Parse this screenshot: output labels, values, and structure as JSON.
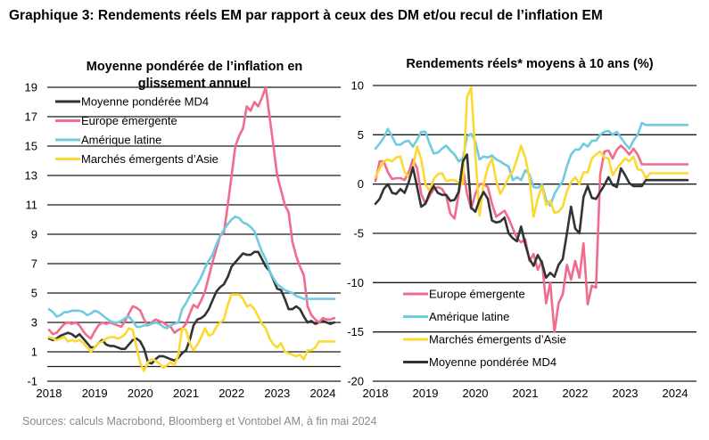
{
  "page": {
    "title": "Graphique 3: Rendements réels EM par rapport à ceux des DM et/ou recul de l’inflation EM",
    "source": "Sources: calculs Macrobond, Bloomberg et Vontobel AM, à fin mai 2024"
  },
  "colors": {
    "md4": "#333333",
    "europe": "#f06b8c",
    "latam": "#6fcbe0",
    "asia": "#fcd932",
    "grid": "#222222"
  },
  "chart_data": [
    {
      "type": "line",
      "title": "Moyenne pondérée de l’inflation en glissement annuel",
      "title_lines": [
        "Moyenne pondérée de l’inflation en",
        "glissement annuel"
      ],
      "xlabel": "",
      "ylabel": "",
      "x_start": "2018-01",
      "x_frequency": "monthly",
      "x_range": [
        2018.0,
        2024.42
      ],
      "x_ticks": [
        "2018",
        "2019",
        "2020",
        "2021",
        "2022",
        "2023",
        "2024"
      ],
      "ylim": [
        -1,
        19
      ],
      "y_ticks": [
        "19",
        "17",
        "15",
        "13",
        "11",
        "9",
        "7",
        "5",
        "3",
        "1",
        "-1"
      ],
      "y_tick_values": [
        19,
        17,
        15,
        13,
        11,
        9,
        7,
        5,
        3,
        1,
        -1
      ],
      "gridlines": [
        19,
        17,
        15,
        13,
        11,
        9,
        7,
        5,
        3,
        1,
        0,
        -1
      ],
      "grid": true,
      "legend_position": "top-left",
      "legend": [
        "Moyenne pondérée MD4",
        "Europe émergente",
        "Amérique latine",
        "Marchés émergents d’Asie"
      ],
      "series": [
        {
          "name": "Moyenne pondérée MD4",
          "color_key": "md4",
          "values": [
            1.9,
            1.8,
            1.9,
            2.1,
            2.2,
            2.3,
            2.2,
            2.0,
            2.2,
            1.9,
            1.6,
            1.3,
            1.3,
            1.6,
            1.8,
            1.5,
            1.4,
            1.4,
            1.3,
            1.2,
            1.2,
            1.5,
            1.8,
            1.9,
            1.7,
            1.2,
            0.3,
            0.2,
            0.5,
            0.7,
            0.7,
            0.6,
            0.5,
            0.4,
            0.6,
            0.9,
            1.1,
            1.8,
            2.8,
            3.2,
            3.3,
            3.5,
            3.9,
            4.5,
            5.1,
            5.4,
            5.6,
            6.1,
            6.8,
            7.1,
            7.4,
            7.7,
            7.6,
            7.6,
            7.8,
            7.8,
            7.3,
            6.8,
            6.5,
            5.9,
            5.3,
            5.2,
            4.6,
            3.9,
            3.9,
            4.1,
            3.9,
            3.4,
            3.0,
            3.1,
            2.9,
            3.0,
            3.1,
            3.0,
            2.9,
            3.0
          ]
        },
        {
          "name": "Europe émergente",
          "color_key": "europe",
          "values": [
            2.5,
            2.2,
            2.3,
            2.6,
            2.9,
            3.0,
            2.9,
            3.0,
            2.8,
            2.4,
            2.1,
            1.9,
            2.4,
            2.8,
            3.0,
            2.9,
            3.0,
            2.9,
            2.8,
            2.7,
            3.1,
            3.6,
            4.1,
            4.0,
            3.8,
            3.2,
            2.8,
            3.0,
            3.2,
            3.1,
            3.0,
            2.8,
            2.7,
            2.3,
            2.5,
            2.6,
            2.9,
            3.6,
            4.2,
            4.0,
            4.5,
            5.1,
            6.1,
            7.1,
            8.0,
            8.9,
            9.1,
            11.0,
            13.0,
            15.0,
            15.7,
            16.2,
            17.7,
            17.4,
            18.0,
            17.7,
            18.3,
            19.0,
            17.0,
            15.0,
            13.0,
            12.0,
            11.0,
            10.5,
            8.5,
            7.5,
            6.8,
            6.2,
            4.1,
            3.5,
            3.2,
            3.0,
            3.3,
            3.2,
            3.2,
            3.3
          ]
        },
        {
          "name": "Amérique latine",
          "color_key": "latam",
          "values": [
            3.9,
            3.7,
            3.4,
            3.5,
            3.7,
            3.7,
            3.8,
            3.8,
            3.8,
            3.7,
            3.5,
            3.6,
            3.8,
            3.7,
            3.5,
            3.3,
            3.1,
            3.0,
            3.0,
            3.1,
            3.3,
            3.4,
            3.1,
            2.7,
            2.7,
            2.8,
            2.8,
            2.9,
            3.0,
            2.9,
            2.7,
            2.6,
            2.8,
            2.9,
            3.0,
            3.9,
            4.3,
            4.8,
            5.2,
            5.6,
            6.1,
            6.7,
            7.2,
            7.6,
            8.3,
            8.9,
            9.3,
            9.7,
            10.0,
            10.2,
            10.1,
            9.8,
            9.7,
            9.5,
            9.2,
            8.5,
            7.8,
            7.3,
            6.5,
            6.0,
            5.6,
            5.4,
            5.2,
            5.1,
            5.0,
            4.8,
            4.7,
            4.6,
            4.6,
            4.6,
            4.6,
            4.6,
            4.6,
            4.6,
            4.6,
            4.6
          ]
        },
        {
          "name": "Marchés émergents d’Asie",
          "color_key": "asia",
          "values": [
            2.0,
            1.9,
            1.8,
            1.9,
            2.0,
            1.7,
            1.8,
            1.7,
            1.8,
            1.6,
            1.3,
            1.0,
            1.3,
            1.6,
            1.7,
            1.9,
            2.0,
            2.0,
            1.9,
            2.0,
            2.2,
            2.6,
            2.5,
            1.3,
            0.2,
            -0.3,
            0.3,
            0.5,
            0.4,
            0.2,
            -0.1,
            0.1,
            0.3,
            0.1,
            0.8,
            2.6,
            2.5,
            1.6,
            1.1,
            1.5,
            2.0,
            2.6,
            2.1,
            2.2,
            2.7,
            3.0,
            3.2,
            4.2,
            4.9,
            4.9,
            4.9,
            4.6,
            4.1,
            4.2,
            3.9,
            3.4,
            2.9,
            2.6,
            1.9,
            1.5,
            1.3,
            1.6,
            1.0,
            0.9,
            0.8,
            0.7,
            0.8,
            0.5,
            1.1,
            1.1,
            1.3,
            1.7,
            1.7,
            1.7,
            1.7,
            1.7
          ]
        }
      ]
    },
    {
      "type": "line",
      "title": "Rendements réels* moyens à 10 ans (%)",
      "title_lines": [
        "Rendements réels* moyens à 10 ans (%)"
      ],
      "xlabel": "",
      "ylabel": "",
      "x_start": "2018-01",
      "x_frequency": "monthly",
      "x_range": [
        2018.0,
        2024.42
      ],
      "x_ticks": [
        "2018",
        "2019",
        "2020",
        "2021",
        "2022",
        "2023",
        "2024"
      ],
      "ylim": [
        -20,
        10
      ],
      "y_ticks": [
        "10",
        "5",
        "0",
        "-5",
        "-10",
        "-15",
        "-20"
      ],
      "y_tick_values": [
        10,
        5,
        0,
        -5,
        -10,
        -15,
        -20
      ],
      "gridlines": [
        10,
        5,
        0,
        -5,
        -10,
        -15,
        -20
      ],
      "grid": true,
      "legend_position": "bottom-left",
      "legend": [
        "Europe émergente",
        "Amérique latine",
        "Marchés émergents d’Asie",
        "Moyenne pondérée MD4"
      ],
      "series": [
        {
          "name": "Europe émergente",
          "color_key": "europe",
          "values": [
            0.3,
            2.3,
            2.3,
            1.2,
            0.5,
            0.6,
            0.6,
            0.4,
            1.2,
            2.5,
            1.6,
            -1.0,
            -2.0,
            -1.2,
            -0.5,
            -0.3,
            -0.5,
            -1.2,
            -3.0,
            -3.5,
            -1.0,
            1.7,
            -1.0,
            -2.5,
            -1.0,
            0.0,
            0.0,
            -0.3,
            -2.0,
            -3.3,
            -3.0,
            -2.7,
            -3.5,
            -4.5,
            -5.5,
            -5.9,
            -5.6,
            -7.8,
            -7.1,
            -8.7,
            -7.8,
            -12.1,
            -10.0,
            -15.0,
            -12.1,
            -11.2,
            -8.2,
            -9.7,
            -7.8,
            -9.5,
            -6.0,
            -12.2,
            -10.3,
            -10.5,
            1.0,
            3.3,
            3.4,
            2.6,
            3.5,
            3.9,
            3.5,
            3.0,
            3.6,
            3.0,
            2.0,
            2.0,
            2.0,
            2.0,
            2.0,
            2.0,
            2.0,
            2.0,
            2.0,
            2.0,
            2.0,
            2.0
          ]
        },
        {
          "name": "Amérique latine",
          "color_key": "latam",
          "values": [
            3.6,
            4.1,
            4.7,
            5.6,
            4.8,
            4.0,
            4.0,
            4.3,
            4.4,
            3.8,
            4.5,
            5.3,
            5.3,
            4.1,
            3.1,
            3.2,
            3.6,
            3.9,
            3.4,
            3.0,
            2.3,
            2.6,
            4.8,
            5.1,
            4.3,
            2.5,
            2.8,
            2.7,
            2.9,
            2.5,
            2.3,
            2.0,
            1.8,
            0.4,
            0.7,
            0.4,
            1.4,
            1.0,
            -0.3,
            -0.4,
            0.0,
            -1.6,
            -2.2,
            -1.0,
            -0.3,
            0.3,
            1.8,
            3.0,
            3.5,
            3.5,
            4.1,
            3.8,
            4.4,
            4.4,
            5.0,
            5.3,
            5.4,
            5.0,
            5.3,
            4.7,
            4.1,
            3.6,
            4.4,
            5.0,
            6.2,
            6.0,
            6.0,
            6.0,
            6.0,
            6.0,
            6.0,
            6.0,
            6.0,
            6.0,
            6.0,
            6.0
          ]
        },
        {
          "name": "Marchés émergents d’Asie",
          "color_key": "asia",
          "values": [
            0.7,
            1.6,
            2.3,
            2.5,
            2.3,
            2.7,
            2.8,
            1.2,
            0.7,
            1.7,
            3.8,
            2.5,
            0.0,
            -0.7,
            0.5,
            1.0,
            1.1,
            0.3,
            0.4,
            0.4,
            0.1,
            0.0,
            8.8,
            9.8,
            3.0,
            -3.2,
            0.0,
            1.7,
            2.6,
            0.4,
            -1.0,
            -0.2,
            0.7,
            1.3,
            2.5,
            3.9,
            2.7,
            0.6,
            -3.3,
            -1.5,
            -0.2,
            -2.1,
            -1.7,
            -2.9,
            -2.8,
            -2.3,
            -0.7,
            0.2,
            0.7,
            0.0,
            1.2,
            1.2,
            2.6,
            3.0,
            3.3,
            2.7,
            2.6,
            0.9,
            1.6,
            2.1,
            2.6,
            2.3,
            2.8,
            1.5,
            1.4,
            0.6,
            1.1,
            1.1,
            1.1,
            1.1,
            1.1,
            1.1,
            1.1,
            1.1,
            1.1,
            1.1
          ]
        },
        {
          "name": "Moyenne pondérée MD4",
          "color_key": "md4",
          "values": [
            -2.0,
            -1.5,
            -0.5,
            0.0,
            -0.9,
            -1.0,
            -0.5,
            -0.9,
            0.2,
            1.7,
            -0.3,
            -2.3,
            -2.0,
            -0.9,
            -0.2,
            -0.9,
            -1.1,
            -1.1,
            -1.7,
            -1.6,
            -0.8,
            2.3,
            3.0,
            -2.4,
            -2.8,
            -1.6,
            -0.8,
            -1.5,
            -3.7,
            -3.9,
            -3.8,
            -3.4,
            -5.0,
            -5.5,
            -5.8,
            -4.3,
            -6.1,
            -7.6,
            -8.3,
            -7.2,
            -8.0,
            -9.5,
            -9.0,
            -9.4,
            -8.2,
            -7.6,
            -5.0,
            -2.3,
            -4.5,
            -5.0,
            -1.3,
            -0.2,
            -1.4,
            -1.5,
            -0.8,
            -0.1,
            0.7,
            -0.1,
            -0.3,
            1.6,
            0.9,
            0.1,
            -0.2,
            -0.2,
            -0.2,
            0.4,
            0.4,
            0.4,
            0.4,
            0.4,
            0.4,
            0.4,
            0.4,
            0.4,
            0.4,
            0.4
          ]
        }
      ]
    }
  ]
}
